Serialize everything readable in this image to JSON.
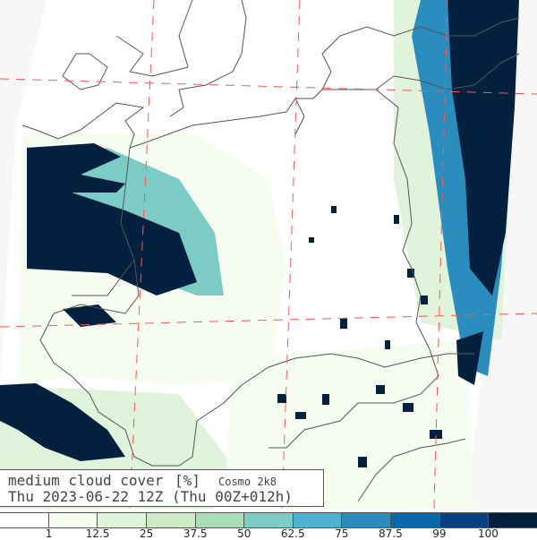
{
  "title": {
    "variable": "medium cloud cover",
    "unit": "[%]",
    "model": "Cosmo 2k8",
    "valid_time": "Thu 2023-06-22 12Z (Thu 00Z+012h)"
  },
  "colorbar": {
    "colors": [
      "#ffffff",
      "#f7fcf0",
      "#e0f3db",
      "#ccebc5",
      "#a8ddb5",
      "#7bccc4",
      "#4eb3d3",
      "#2b8cbe",
      "#0868ac",
      "#084081",
      "#04203f"
    ],
    "ticks": [
      "1",
      "12.5",
      "25",
      "37.5",
      "50",
      "62.5",
      "75",
      "87.5",
      "99",
      "100"
    ]
  },
  "colors": {
    "coastline": "#555555",
    "gridline": "#ff5555",
    "outside_domain": "#f7f7f7"
  }
}
